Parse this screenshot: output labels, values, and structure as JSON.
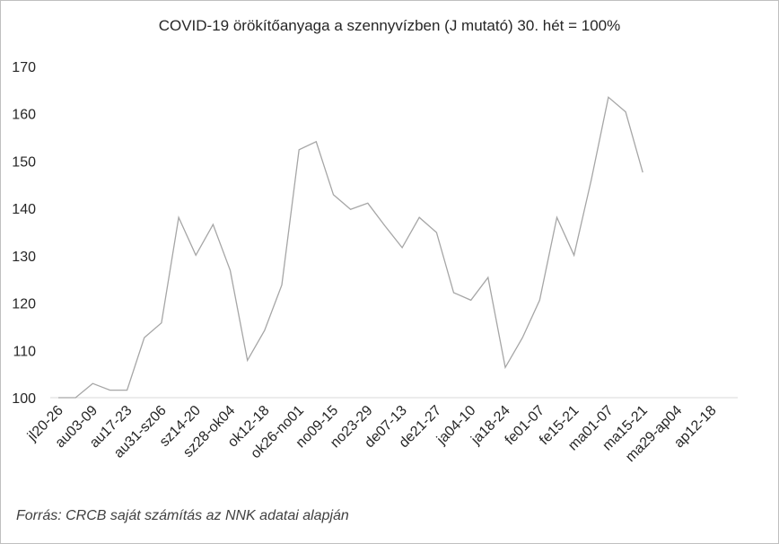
{
  "chart_data": {
    "type": "line",
    "title": "COVID-19 örökítőanyaga a szennyvízben (J mutató) 30. hét = 100%",
    "xlabel": "",
    "ylabel": "",
    "ylim": [
      100,
      170
    ],
    "yticks": [
      100,
      110,
      120,
      130,
      140,
      150,
      160,
      170
    ],
    "x_tick_labels": [
      "jl20-26",
      "au03-09",
      "au17-23",
      "au31-sz06",
      "sz14-20",
      "sz28-ok04",
      "ok12-18",
      "ok26-no01",
      "no09-15",
      "no23-29",
      "de07-13",
      "de21-27",
      "ja04-10",
      "ja18-24",
      "fe01-07",
      "fe15-21",
      "ma01-07",
      "ma15-21",
      "ma29-ap04",
      "ap12-18"
    ],
    "grid": false,
    "legend": "none",
    "line_color": "#a6a6a6",
    "series": [
      {
        "values": [
          100,
          100,
          103,
          101.6,
          101.6,
          112.7,
          115.8,
          138.1,
          130.1,
          136.6,
          126.9,
          107.9,
          114.2,
          123.8,
          152.4,
          154.1,
          142.9,
          139.8,
          141.1,
          136.3,
          131.7,
          138.1,
          134.9,
          122.2,
          120.6,
          125.4,
          106.4,
          112.7,
          120.6,
          138.1,
          130.1,
          146.0,
          163.5,
          160.4,
          147.6
        ]
      }
    ]
  },
  "source_note": "Forrás: CRCB saját számítás az NNK adatai alapján"
}
